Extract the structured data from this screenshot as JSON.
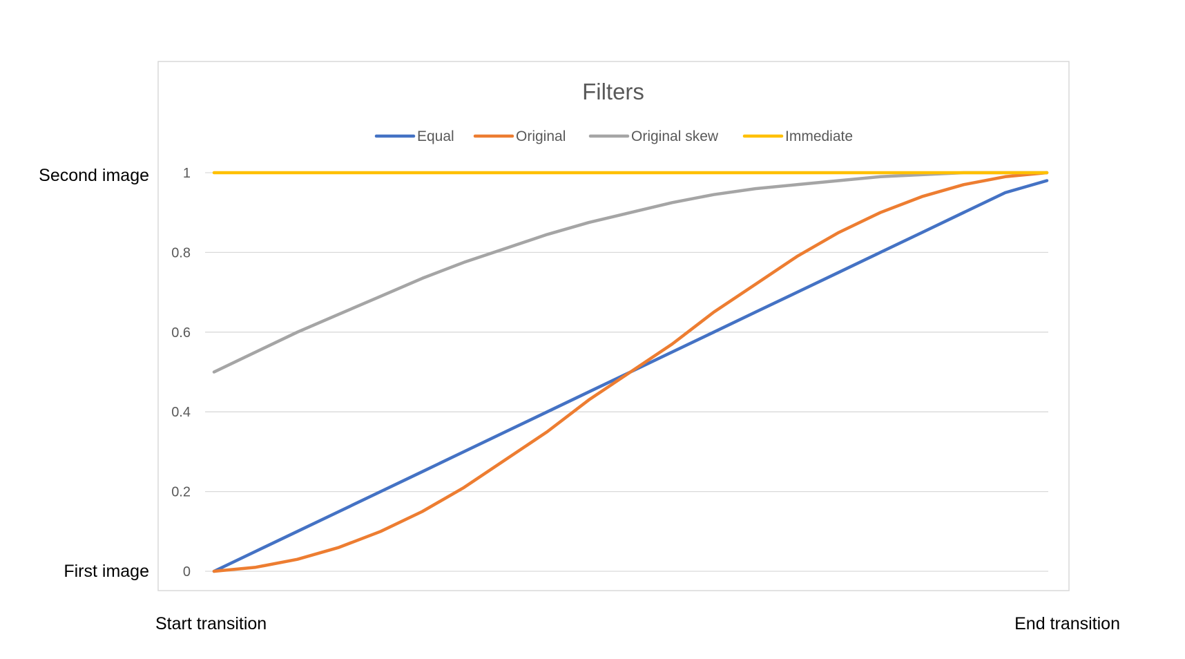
{
  "chart_data": {
    "type": "line",
    "title": "Filters",
    "xlabel": "",
    "ylabel": "",
    "ylim": [
      0,
      1
    ],
    "yticks": [
      0,
      0.2,
      0.4,
      0.6,
      0.8,
      1
    ],
    "ytick_labels": [
      "0",
      "0.2",
      "0.4",
      "0.6",
      "0.8",
      "1"
    ],
    "xlim": [
      0,
      1
    ],
    "grid": true,
    "legend_position": "top",
    "y_outer_labels": {
      "top": "Second image",
      "bottom": "First image"
    },
    "x_outer_labels": {
      "start": "Start transition",
      "end": "End transition"
    },
    "x": [
      0,
      0.05,
      0.1,
      0.15,
      0.2,
      0.25,
      0.3,
      0.35,
      0.4,
      0.45,
      0.5,
      0.55,
      0.6,
      0.65,
      0.7,
      0.75,
      0.8,
      0.85,
      0.9,
      0.95,
      1
    ],
    "series": [
      {
        "name": "Equal",
        "color": "#4472C4",
        "values": [
          0,
          0.05,
          0.1,
          0.15,
          0.2,
          0.25,
          0.3,
          0.35,
          0.4,
          0.45,
          0.5,
          0.55,
          0.6,
          0.65,
          0.7,
          0.75,
          0.8,
          0.85,
          0.9,
          0.95,
          0.98
        ]
      },
      {
        "name": "Original",
        "color": "#ED7D31",
        "values": [
          0,
          0.01,
          0.03,
          0.06,
          0.1,
          0.15,
          0.21,
          0.28,
          0.35,
          0.43,
          0.5,
          0.57,
          0.65,
          0.72,
          0.79,
          0.85,
          0.9,
          0.94,
          0.97,
          0.99,
          1
        ]
      },
      {
        "name": "Original skew",
        "color": "#A5A5A5",
        "values": [
          0.5,
          0.55,
          0.6,
          0.645,
          0.69,
          0.735,
          0.775,
          0.81,
          0.845,
          0.875,
          0.9,
          0.925,
          0.945,
          0.96,
          0.97,
          0.98,
          0.99,
          0.995,
          1,
          1,
          1
        ]
      },
      {
        "name": "Immediate",
        "color": "#FFC000",
        "values": [
          1,
          1,
          1,
          1,
          1,
          1,
          1,
          1,
          1,
          1,
          1,
          1,
          1,
          1,
          1,
          1,
          1,
          1,
          1,
          1,
          1
        ]
      }
    ]
  }
}
